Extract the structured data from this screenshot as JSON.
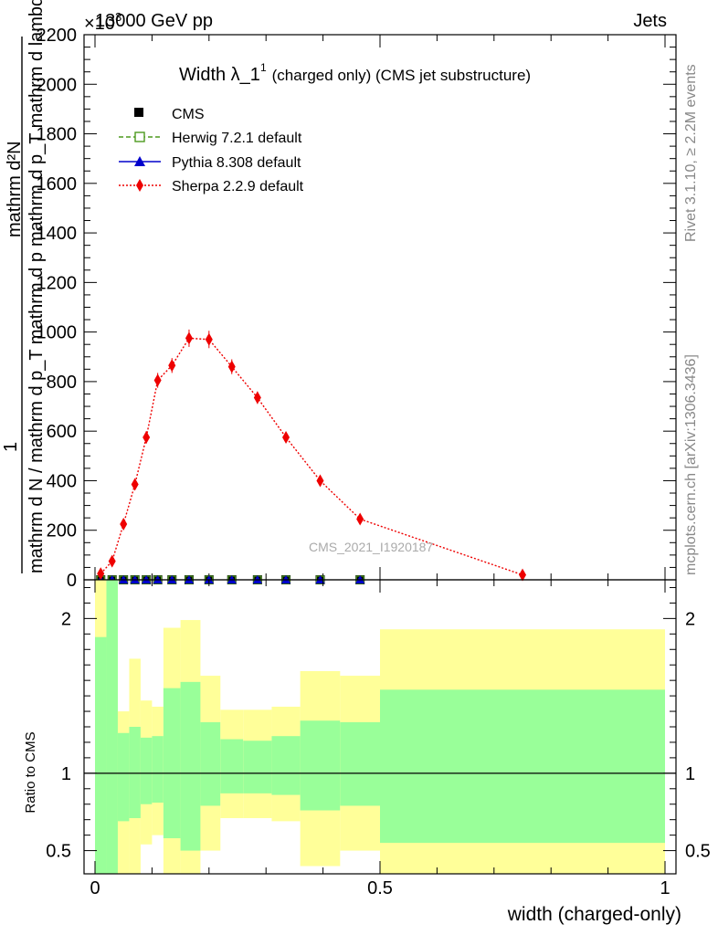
{
  "header": {
    "energy": "13000 GeV pp",
    "category": "Jets",
    "exponent": "×10",
    "exponent_power": "3"
  },
  "side": {
    "rivet": "Rivet 3.1.10, ≥ 2.2M events",
    "mcplots": "mcplots.cern.ch [arXiv:1306.3436]"
  },
  "watermark": "CMS_2021_I1920187",
  "chart_data": [
    {
      "type": "line",
      "title": "Width λ_1¹ (charged only) (CMS jet substructure)",
      "title_main": "Width λ_1",
      "title_sup": "1",
      "title_rest": "(charged only) (CMS jet substructure)",
      "ylabel_top": "mathrm d²N",
      "ylabel_top_extra": "mathrm d p_T mathrm d lambda",
      "ylabel_one": "1",
      "ylabel_bottom": "mathrm d N / mathrm d p_T mathrm d p",
      "xlim": [
        0,
        1
      ],
      "ylim": [
        0,
        2200
      ],
      "y_scale_factor": 1000,
      "yticks": [
        0,
        200,
        400,
        600,
        800,
        1000,
        1200,
        1400,
        1600,
        1800,
        2000,
        2200
      ],
      "ytick_labels": [
        "0",
        "200",
        "400",
        "600",
        "800",
        "1000",
        "1200",
        "1400",
        "1600",
        "1800",
        "2000",
        "2200"
      ],
      "legend": [
        "CMS",
        "Herwig 7.2.1 default",
        "Pythia 8.308 default",
        "Sherpa 2.2.9 default"
      ],
      "legend_position": "top-left",
      "series": [
        {
          "name": "CMS",
          "marker": "square",
          "color": "#000000",
          "x": [
            0.01,
            0.03,
            0.05,
            0.07,
            0.09,
            0.11,
            0.135,
            0.165,
            0.2,
            0.24,
            0.285,
            0.335,
            0.395,
            0.465
          ],
          "y": [
            0,
            0,
            0,
            0,
            0,
            0,
            0,
            0,
            0,
            0,
            0,
            0,
            0,
            0
          ]
        },
        {
          "name": "Herwig 7.2.1 default",
          "marker": "open-square",
          "color": "#4d9a1f",
          "x": [
            0.01,
            0.03,
            0.05,
            0.07,
            0.09,
            0.11,
            0.135,
            0.165,
            0.2,
            0.24,
            0.285,
            0.335,
            0.395,
            0.465
          ],
          "y": [
            0,
            0,
            0,
            0,
            0,
            0,
            0,
            0,
            0,
            0,
            0,
            0,
            0,
            0
          ]
        },
        {
          "name": "Pythia 8.308 default",
          "marker": "triangle",
          "color": "#0000cc",
          "x": [
            0.01,
            0.03,
            0.05,
            0.07,
            0.09,
            0.11,
            0.135,
            0.165,
            0.2,
            0.24,
            0.285,
            0.335,
            0.395,
            0.465
          ],
          "y": [
            0,
            0,
            0,
            0,
            0,
            0,
            0,
            0,
            0,
            0,
            0,
            0,
            0,
            0
          ]
        },
        {
          "name": "Sherpa 2.2.9 default",
          "marker": "diamond",
          "color": "#ee0000",
          "x": [
            0.01,
            0.03,
            0.05,
            0.07,
            0.09,
            0.11,
            0.135,
            0.165,
            0.2,
            0.24,
            0.285,
            0.335,
            0.395,
            0.465,
            0.75
          ],
          "y": [
            25,
            75,
            225,
            385,
            575,
            805,
            865,
            975,
            970,
            860,
            735,
            575,
            400,
            245,
            20
          ],
          "yerr": [
            10,
            15,
            20,
            20,
            25,
            30,
            30,
            35,
            35,
            30,
            25,
            20,
            15,
            12,
            8
          ]
        }
      ]
    },
    {
      "type": "area",
      "ylabel": "Ratio to CMS",
      "xlabel": "width (charged-only)",
      "xlim": [
        0,
        1
      ],
      "ylim": [
        0.35,
        2.25
      ],
      "xticks": [
        0,
        0.5,
        1
      ],
      "xtick_labels": [
        "0",
        "0.5",
        "1"
      ],
      "yticks": [
        0.5,
        1,
        2
      ],
      "ytick_labels": [
        "0.5",
        "1",
        "2"
      ],
      "reference_line": 1,
      "colors": {
        "inner_band": "#99ff99",
        "outer_band": "#ffff99"
      },
      "bands": [
        {
          "x0": 0.0,
          "x1": 0.02,
          "outer_lo": 0.35,
          "outer_hi": 2.25,
          "inner_lo": 0.35,
          "inner_hi": 1.88
        },
        {
          "x0": 0.02,
          "x1": 0.04,
          "outer_lo": 0.35,
          "outer_hi": 2.25,
          "inner_lo": 0.35,
          "inner_hi": 2.25
        },
        {
          "x0": 0.04,
          "x1": 0.06,
          "outer_lo": 0.35,
          "outer_hi": 1.4,
          "inner_lo": 0.69,
          "inner_hi": 1.26
        },
        {
          "x0": 0.06,
          "x1": 0.08,
          "outer_lo": 0.35,
          "outer_hi": 1.74,
          "inner_lo": 0.71,
          "inner_hi": 1.3
        },
        {
          "x0": 0.08,
          "x1": 0.1,
          "outer_lo": 0.54,
          "outer_hi": 1.47,
          "inner_lo": 0.8,
          "inner_hi": 1.23
        },
        {
          "x0": 0.1,
          "x1": 0.12,
          "outer_lo": 0.6,
          "outer_hi": 1.43,
          "inner_lo": 0.81,
          "inner_hi": 1.24
        },
        {
          "x0": 0.12,
          "x1": 0.15,
          "outer_lo": 0.35,
          "outer_hi": 1.94,
          "inner_lo": 0.58,
          "inner_hi": 1.55
        },
        {
          "x0": 0.15,
          "x1": 0.185,
          "outer_lo": 0.35,
          "outer_hi": 1.99,
          "inner_lo": 0.5,
          "inner_hi": 1.59
        },
        {
          "x0": 0.185,
          "x1": 0.22,
          "outer_lo": 0.5,
          "outer_hi": 1.63,
          "inner_lo": 0.79,
          "inner_hi": 1.33
        },
        {
          "x0": 0.22,
          "x1": 0.26,
          "outer_lo": 0.71,
          "outer_hi": 1.41,
          "inner_lo": 0.87,
          "inner_hi": 1.22
        },
        {
          "x0": 0.26,
          "x1": 0.31,
          "outer_lo": 0.71,
          "outer_hi": 1.41,
          "inner_lo": 0.87,
          "inner_hi": 1.21
        },
        {
          "x0": 0.31,
          "x1": 0.36,
          "outer_lo": 0.69,
          "outer_hi": 1.43,
          "inner_lo": 0.86,
          "inner_hi": 1.24
        },
        {
          "x0": 0.36,
          "x1": 0.43,
          "outer_lo": 0.4,
          "outer_hi": 1.66,
          "inner_lo": 0.76,
          "inner_hi": 1.34
        },
        {
          "x0": 0.43,
          "x1": 0.5,
          "outer_lo": 0.5,
          "outer_hi": 1.63,
          "inner_lo": 0.79,
          "inner_hi": 1.33
        },
        {
          "x0": 0.5,
          "x1": 1.0,
          "outer_lo": 0.35,
          "outer_hi": 1.93,
          "inner_lo": 0.55,
          "inner_hi": 1.54
        }
      ]
    }
  ]
}
